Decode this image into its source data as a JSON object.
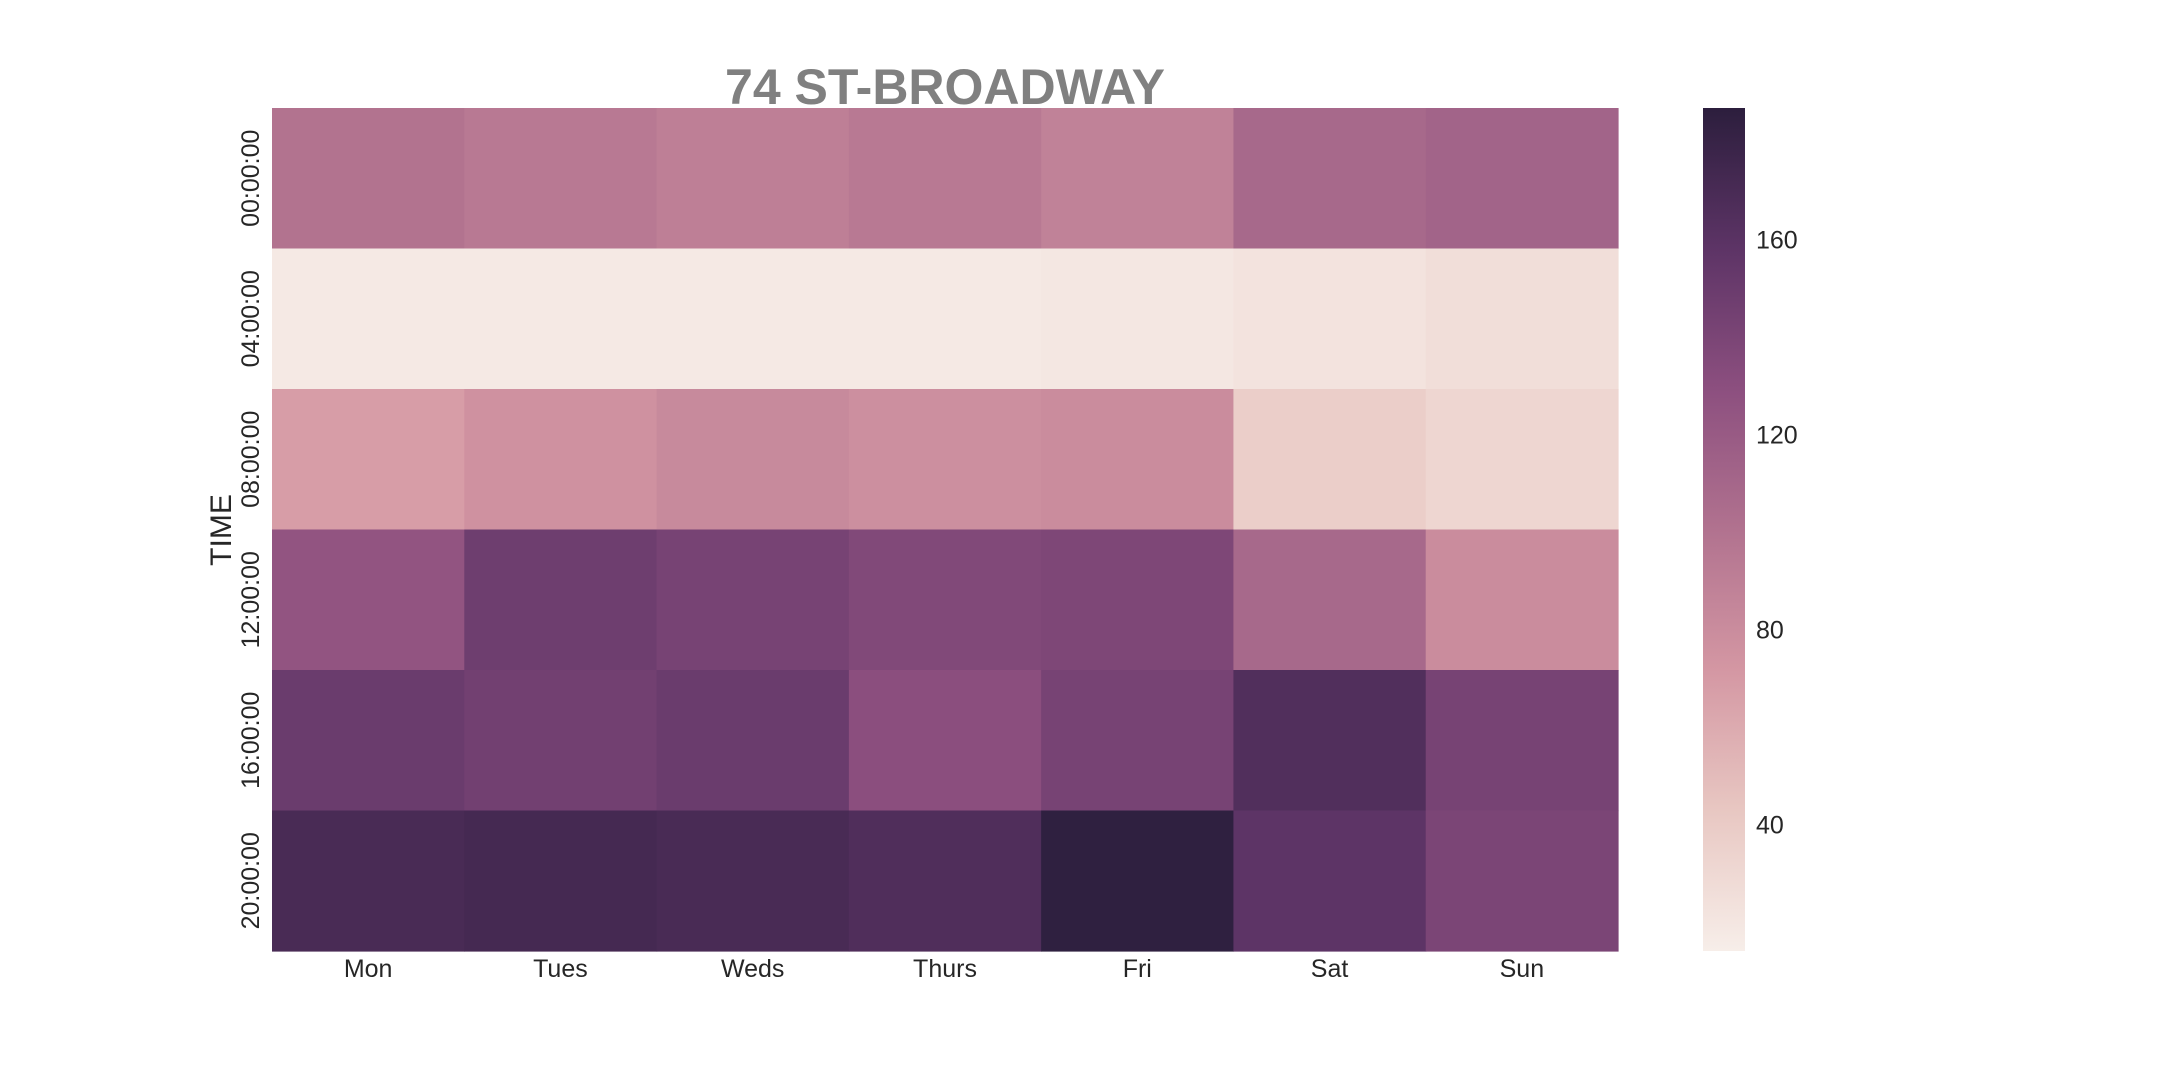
{
  "chart_data": {
    "type": "heatmap",
    "title": "74 ST-BROADWAY",
    "xlabel": "",
    "ylabel": "TIME",
    "x_categories": [
      "Mon",
      "Tues",
      "Weds",
      "Thurs",
      "Fri",
      "Sat",
      "Sun"
    ],
    "y_categories": [
      "00:00:00",
      "04:00:00",
      "08:00:00",
      "12:00:00",
      "16:00:00",
      "20:00:00"
    ],
    "values": [
      [
        100,
        95,
        90,
        95,
        88,
        108,
        112
      ],
      [
        18,
        18,
        18,
        18,
        19,
        22,
        26
      ],
      [
        68,
        76,
        82,
        78,
        80,
        38,
        32
      ],
      [
        125,
        148,
        142,
        136,
        138,
        108,
        80
      ],
      [
        150,
        145,
        150,
        130,
        142,
        165,
        142
      ],
      [
        170,
        172,
        170,
        166,
        185,
        158,
        140
      ]
    ],
    "colorbar": {
      "vmin": 14,
      "vmax": 187,
      "ticks": [
        40,
        80,
        120,
        160
      ],
      "tick_labels": [
        "40",
        "80",
        "120",
        "160"
      ]
    },
    "colors": {
      "title": "#808080",
      "text": "#262626",
      "scale": [
        "#f7eee9",
        "#e8c7c2",
        "#d497a3",
        "#b1728f",
        "#8c4f7f",
        "#5d3466",
        "#2c1e3d"
      ]
    }
  }
}
